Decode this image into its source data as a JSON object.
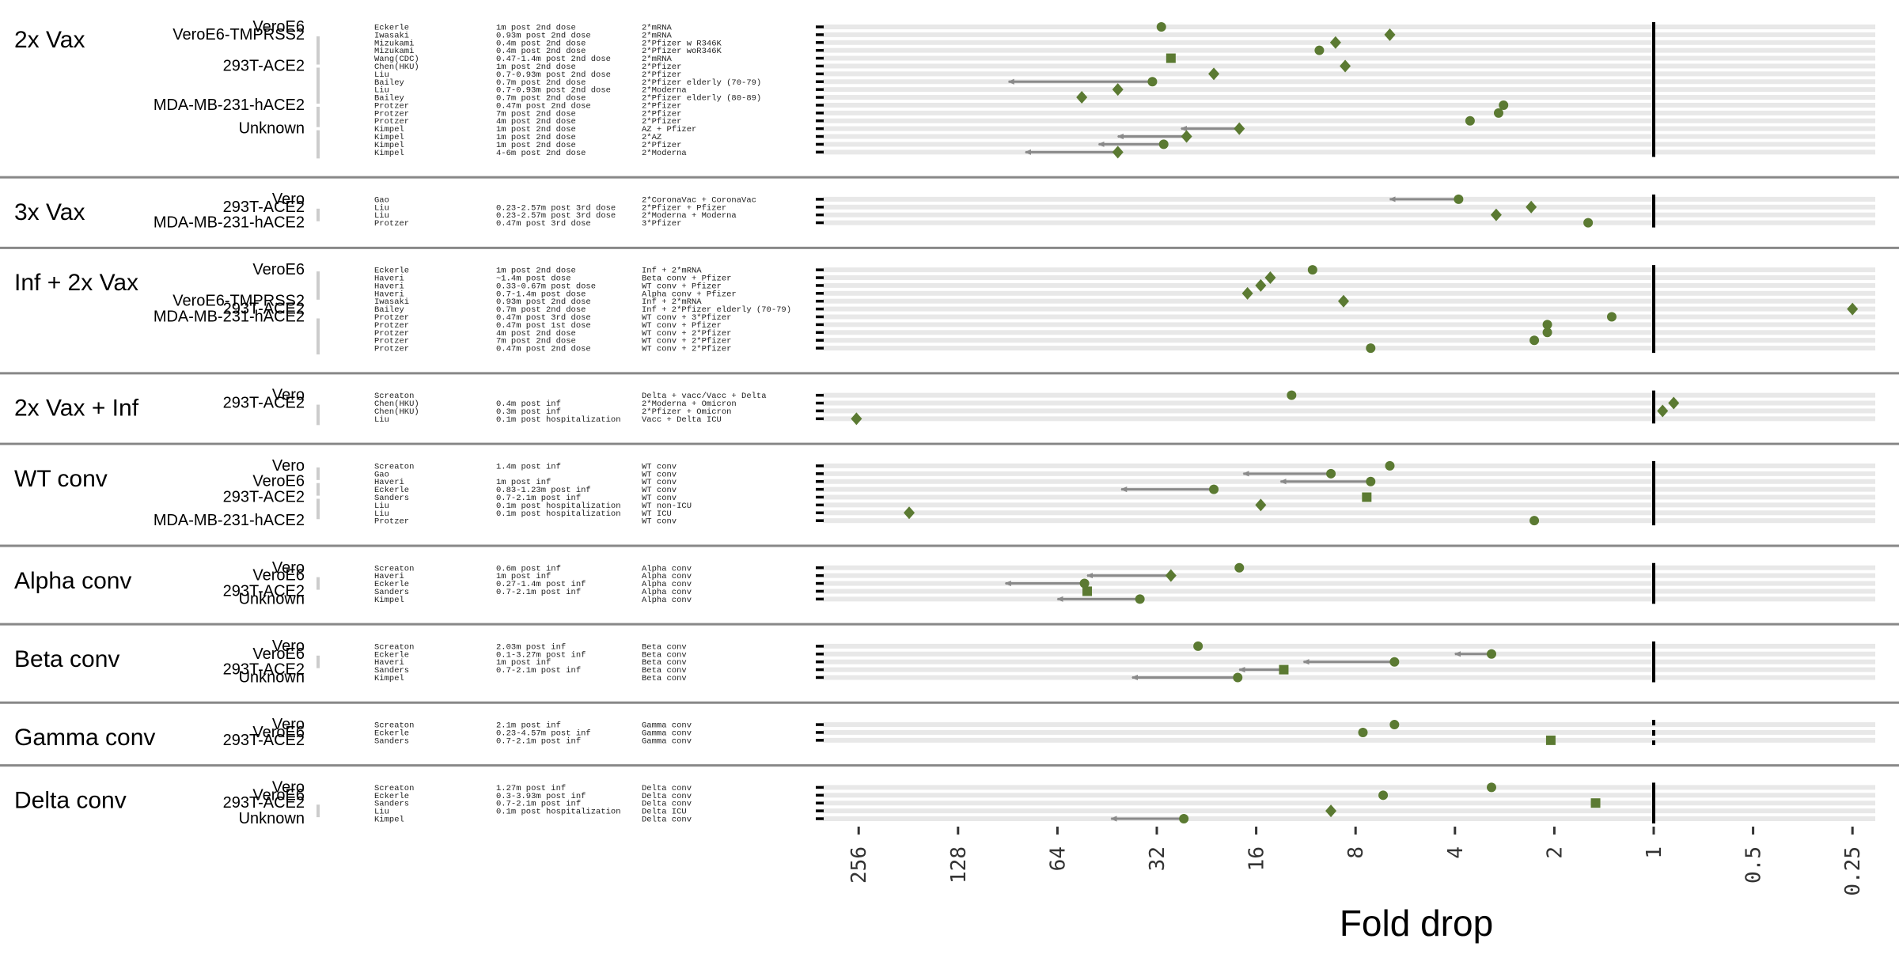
{
  "chart_data": {
    "type": "scatter",
    "xlabel": "Fold drop",
    "x_scale": "log2",
    "x_reversed": true,
    "xlim": [
      340,
      0.2
    ],
    "x_ticks": [
      "256",
      "128",
      "64",
      "32",
      "16",
      "8",
      "4",
      "2",
      "1",
      "0.5",
      "0.25"
    ],
    "reference_line_x": 1,
    "colors": {
      "marker": "#5b7a32",
      "arrow": "#8a8a8a",
      "band": "#e8e8e8",
      "separator": "#888888",
      "bar": "#cccccc"
    },
    "groups": [
      {
        "name": "2x Vax",
        "rows": [
          {
            "cell": "VeroE6",
            "study": "Eckerle",
            "timing": "1m post 2nd dose",
            "regimen": "2*mRNA",
            "marker": "circle",
            "value": 31
          },
          {
            "cell": "VeroE6-TMPRSS2",
            "study": "Iwasaki",
            "timing": "0.93m post 2nd dose",
            "regimen": "2*mRNA",
            "marker": "diamond",
            "value": 6.3
          },
          {
            "cell": "",
            "study": "Mizukami",
            "timing": "0.4m post 2nd dose",
            "regimen": "2*Pfizer w R346K",
            "marker": "diamond",
            "value": 9.2
          },
          {
            "cell": "",
            "study": "Mizukami",
            "timing": "0.4m post 2nd dose",
            "regimen": "2*Pfizer woR346K",
            "marker": "circle",
            "value": 10.3
          },
          {
            "cell": "",
            "study": "Wang(CDC)",
            "timing": "0.47-1.4m post 2nd dose",
            "regimen": "2*mRNA",
            "marker": "square",
            "value": 29
          },
          {
            "cell": "293T-ACE2",
            "study": "Chen(HKU)",
            "timing": "1m post 2nd dose",
            "regimen": "2*Pfizer",
            "marker": "diamond",
            "value": 8.6
          },
          {
            "cell": "",
            "study": "Liu",
            "timing": "0.7-0.93m post 2nd dose",
            "regimen": "2*Pfizer",
            "marker": "diamond",
            "value": 21.5
          },
          {
            "cell": "",
            "study": "Bailey",
            "timing": "0.7m post 2nd dose",
            "regimen": "2*Pfizer elderly (70-79)",
            "marker": "circle",
            "value": 33,
            "arrow_to": 90
          },
          {
            "cell": "",
            "study": "Liu",
            "timing": "0.7-0.93m post 2nd dose",
            "regimen": "2*Moderna",
            "marker": "diamond",
            "value": 42
          },
          {
            "cell": "",
            "study": "Bailey",
            "timing": "0.7m post 2nd dose",
            "regimen": "2*Pfizer elderly (80-89)",
            "marker": "diamond",
            "value": 54
          },
          {
            "cell": "MDA-MB-231-hACE2",
            "study": "Protzer",
            "timing": "0.47m post 2nd dose",
            "regimen": "2*Pfizer",
            "marker": "circle",
            "value": 2.85
          },
          {
            "cell": "",
            "study": "Protzer",
            "timing": "7m post 2nd dose",
            "regimen": "2*Pfizer",
            "marker": "circle",
            "value": 2.95
          },
          {
            "cell": "",
            "study": "Protzer",
            "timing": "4m post 2nd dose",
            "regimen": "2*Pfizer",
            "marker": "circle",
            "value": 3.6
          },
          {
            "cell": "Unknown",
            "study": "Kimpel",
            "timing": "1m post 2nd dose",
            "regimen": "AZ + Pfizer",
            "marker": "diamond",
            "value": 18,
            "arrow_to": 27
          },
          {
            "cell": "",
            "study": "Kimpel",
            "timing": "1m post 2nd dose",
            "regimen": "2*AZ",
            "marker": "diamond",
            "value": 26,
            "arrow_to": 42
          },
          {
            "cell": "",
            "study": "Kimpel",
            "timing": "1m post 2nd dose",
            "regimen": "2*Pfizer",
            "marker": "circle",
            "value": 30.5,
            "arrow_to": 48
          },
          {
            "cell": "",
            "study": "Kimpel",
            "timing": "4-6m post 2nd dose",
            "regimen": "2*Moderna",
            "marker": "diamond",
            "value": 42,
            "arrow_to": 80
          }
        ]
      },
      {
        "name": "3x Vax",
        "rows": [
          {
            "cell": "Vero",
            "study": "Gao",
            "timing": "",
            "regimen": "2*CoronaVac + CoronaVac",
            "marker": "circle",
            "value": 3.9,
            "arrow_to": 6.3
          },
          {
            "cell": "293T-ACE2",
            "study": "Liu",
            "timing": "0.23-2.57m post 3rd dose",
            "regimen": "2*Pfizer + Pfizer",
            "marker": "diamond",
            "value": 2.35
          },
          {
            "cell": "",
            "study": "Liu",
            "timing": "0.23-2.57m post 3rd dose",
            "regimen": "2*Moderna + Moderna",
            "marker": "diamond",
            "value": 3.0
          },
          {
            "cell": "MDA-MB-231-hACE2",
            "study": "Protzer",
            "timing": "0.47m post 3rd dose",
            "regimen": "3*Pfizer",
            "marker": "circle",
            "value": 1.58
          }
        ]
      },
      {
        "name": "Inf + 2x Vax",
        "rows": [
          {
            "cell": "VeroE6",
            "study": "Eckerle",
            "timing": "1m post 2nd dose",
            "regimen": "Inf + 2*mRNA",
            "marker": "circle",
            "value": 10.8
          },
          {
            "cell": "",
            "study": "Haveri",
            "timing": "~1.4m post dose",
            "regimen": "Beta conv + Pfizer",
            "marker": "diamond",
            "value": 14.5
          },
          {
            "cell": "",
            "study": "Haveri",
            "timing": "0.33-0.67m post dose",
            "regimen": "WT conv + Pfizer",
            "marker": "diamond",
            "value": 15.5
          },
          {
            "cell": "",
            "study": "Haveri",
            "timing": "0.7-1.4m post dose",
            "regimen": "Alpha conv + Pfizer",
            "marker": "diamond",
            "value": 17
          },
          {
            "cell": "VeroE6-TMPRSS2",
            "study": "Iwasaki",
            "timing": "0.93m post 2nd dose",
            "regimen": "Inf + 2*mRNA",
            "marker": "diamond",
            "value": 8.7
          },
          {
            "cell": "293T-ACE2",
            "study": "Bailey",
            "timing": "0.7m post 2nd dose",
            "regimen": "Inf + 2*Pfizer elderly (70-79)",
            "marker": "diamond",
            "value": 0.25
          },
          {
            "cell": "MDA-MB-231-hACE2",
            "study": "Protzer",
            "timing": "0.47m post 3rd dose",
            "regimen": "WT conv + 3*Pfizer",
            "marker": "circle",
            "value": 1.34
          },
          {
            "cell": "",
            "study": "Protzer",
            "timing": "0.47m post 1st dose",
            "regimen": "WT conv + Pfizer",
            "marker": "circle",
            "value": 2.1
          },
          {
            "cell": "",
            "study": "Protzer",
            "timing": "4m post 2nd dose",
            "regimen": "WT conv + 2*Pfizer",
            "marker": "circle",
            "value": 2.1
          },
          {
            "cell": "",
            "study": "Protzer",
            "timing": "7m post 2nd dose",
            "regimen": "WT conv + 2*Pfizer",
            "marker": "circle",
            "value": 2.3
          },
          {
            "cell": "",
            "study": "Protzer",
            "timing": "0.47m post 2nd dose",
            "regimen": "WT conv + 2*Pfizer",
            "marker": "circle",
            "value": 7.2
          }
        ]
      },
      {
        "name": "2x Vax + Inf",
        "rows": [
          {
            "cell": "Vero",
            "study": "Screaton",
            "timing": "",
            "regimen": "Delta + vacc/Vacc + Delta",
            "marker": "circle",
            "value": 12.5
          },
          {
            "cell": "293T-ACE2",
            "study": "Chen(HKU)",
            "timing": "0.4m post inf",
            "regimen": "2*Moderna + Omicron",
            "marker": "diamond",
            "value": 0.87
          },
          {
            "cell": "",
            "study": "Chen(HKU)",
            "timing": "0.3m post inf",
            "regimen": "2*Pfizer + Omicron",
            "marker": "diamond",
            "value": 0.94
          },
          {
            "cell": "",
            "study": "Liu",
            "timing": "0.1m post hospitalization",
            "regimen": "Vacc + Delta ICU",
            "marker": "diamond",
            "value": 260
          }
        ]
      },
      {
        "name": "WT conv",
        "rows": [
          {
            "cell": "Vero",
            "study": "Screaton",
            "timing": "1.4m post inf",
            "regimen": "WT conv",
            "marker": "circle",
            "value": 6.3
          },
          {
            "cell": "",
            "study": "Gao",
            "timing": "",
            "regimen": "WT conv",
            "marker": "circle",
            "value": 9.5,
            "arrow_to": 17.5
          },
          {
            "cell": "VeroE6",
            "study": "Haveri",
            "timing": "1m post inf",
            "regimen": "WT conv",
            "marker": "circle",
            "value": 7.2,
            "arrow_to": 13.5
          },
          {
            "cell": "",
            "study": "Eckerle",
            "timing": "0.83-1.23m post inf",
            "regimen": "WT conv",
            "marker": "circle",
            "value": 21.5,
            "arrow_to": 41
          },
          {
            "cell": "293T-ACE2",
            "study": "Sanders",
            "timing": "0.7-2.1m post inf",
            "regimen": "WT conv",
            "marker": "square",
            "value": 7.4
          },
          {
            "cell": "",
            "study": "Liu",
            "timing": "0.1m post hospitalization",
            "regimen": "WT non-ICU",
            "marker": "diamond",
            "value": 15.5
          },
          {
            "cell": "",
            "study": "Liu",
            "timing": "0.1m post hospitalization",
            "regimen": "WT ICU",
            "marker": "diamond",
            "value": 180
          },
          {
            "cell": "MDA-MB-231-hACE2",
            "study": "Protzer",
            "timing": "",
            "regimen": "WT conv",
            "marker": "circle",
            "value": 2.3
          }
        ]
      },
      {
        "name": "Alpha conv",
        "rows": [
          {
            "cell": "Vero",
            "study": "Screaton",
            "timing": "0.6m post inf",
            "regimen": "Alpha conv",
            "marker": "circle",
            "value": 18
          },
          {
            "cell": "VeroE6",
            "study": "Haveri",
            "timing": "1m post inf",
            "regimen": "Alpha conv",
            "marker": "diamond",
            "value": 29,
            "arrow_to": 52
          },
          {
            "cell": "",
            "study": "Eckerle",
            "timing": "0.27-1.4m post inf",
            "regimen": "Alpha conv",
            "marker": "circle",
            "value": 53,
            "arrow_to": 92
          },
          {
            "cell": "293T-ACE2",
            "study": "Sanders",
            "timing": "0.7-2.1m post inf",
            "regimen": "Alpha conv",
            "marker": "square",
            "value": 52
          },
          {
            "cell": "Unknown",
            "study": "Kimpel",
            "timing": "",
            "regimen": "Alpha conv",
            "marker": "circle",
            "value": 36,
            "arrow_to": 64
          }
        ]
      },
      {
        "name": "Beta conv",
        "rows": [
          {
            "cell": "Vero",
            "study": "Screaton",
            "timing": "2.03m post inf",
            "regimen": "Beta conv",
            "marker": "circle",
            "value": 24
          },
          {
            "cell": "VeroE6",
            "study": "Eckerle",
            "timing": "0.1-3.27m post inf",
            "regimen": "Beta conv",
            "marker": "circle",
            "value": 3.1,
            "arrow_to": 4.0
          },
          {
            "cell": "",
            "study": "Haveri",
            "timing": "1m post inf",
            "regimen": "Beta conv",
            "marker": "circle",
            "value": 6.1,
            "arrow_to": 11.5
          },
          {
            "cell": "293T-ACE2",
            "study": "Sanders",
            "timing": "0.7-2.1m post inf",
            "regimen": "Beta conv",
            "marker": "square",
            "value": 13.2,
            "arrow_to": 18
          },
          {
            "cell": "Unknown",
            "study": "Kimpel",
            "timing": "",
            "regimen": "Beta conv",
            "marker": "circle",
            "value": 18.2,
            "arrow_to": 38
          }
        ]
      },
      {
        "name": "Gamma conv",
        "rows": [
          {
            "cell": "Vero",
            "study": "Screaton",
            "timing": "2.1m post inf",
            "regimen": "Gamma conv",
            "marker": "circle",
            "value": 6.1
          },
          {
            "cell": "VeroE6",
            "study": "Eckerle",
            "timing": "0.23-4.57m post inf",
            "regimen": "Gamma conv",
            "marker": "circle",
            "value": 7.6
          },
          {
            "cell": "293T-ACE2",
            "study": "Sanders",
            "timing": "0.7-2.1m post inf",
            "regimen": "Gamma conv",
            "marker": "square",
            "value": 2.05
          }
        ]
      },
      {
        "name": "Delta conv",
        "rows": [
          {
            "cell": "Vero",
            "study": "Screaton",
            "timing": "1.27m post inf",
            "regimen": "Delta conv",
            "marker": "circle",
            "value": 3.1
          },
          {
            "cell": "VeroE6",
            "study": "Eckerle",
            "timing": "0.3-3.93m post inf",
            "regimen": "Delta conv",
            "marker": "circle",
            "value": 6.6
          },
          {
            "cell": "293T-ACE2",
            "study": "Sanders",
            "timing": "0.7-2.1m post inf",
            "regimen": "Delta conv",
            "marker": "square",
            "value": 1.5
          },
          {
            "cell": "",
            "study": "Liu",
            "timing": "0.1m post hospitalization",
            "regimen": "Delta ICU",
            "marker": "diamond",
            "value": 9.5
          },
          {
            "cell": "Unknown",
            "study": "Kimpel",
            "timing": "",
            "regimen": "Delta conv",
            "marker": "circle",
            "value": 26.5,
            "arrow_to": 44
          }
        ]
      }
    ]
  }
}
